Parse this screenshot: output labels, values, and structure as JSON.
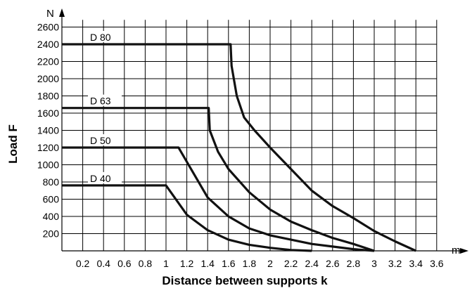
{
  "chart_data": {
    "type": "line",
    "xlabel": "Distance between supports k",
    "ylabel": "Load F",
    "x_unit": "m",
    "y_unit": "N",
    "xlim": [
      0,
      3.8
    ],
    "ylim": [
      0,
      2700
    ],
    "x_ticks": [
      0.2,
      0.4,
      0.6,
      0.8,
      1,
      1.2,
      1.4,
      1.6,
      1.8,
      2,
      2.2,
      2.4,
      2.6,
      2.8,
      3,
      3.2,
      3.4,
      3.6
    ],
    "x_tick_labels": [
      "0.2",
      "0.4",
      "0.6",
      "0.8",
      "1",
      "1.2",
      "1.4",
      "1.6",
      "1.8",
      "2",
      "2.2",
      "2.4",
      "2.6",
      "2.8",
      "3",
      "3.2",
      "3.4",
      "3.6"
    ],
    "y_ticks": [
      200,
      400,
      600,
      800,
      1000,
      1200,
      1400,
      1600,
      1800,
      2000,
      2200,
      2400,
      2600
    ],
    "y_tick_labels": [
      "200",
      "400",
      "600",
      "800",
      "1000",
      "1200",
      "1400",
      "1600",
      "1800",
      "2000",
      "2200",
      "2400",
      "2600"
    ],
    "grid": true,
    "series": [
      {
        "name": "D 80",
        "x": [
          0,
          1.62,
          1.63,
          1.68,
          1.75,
          1.85,
          2.0,
          2.2,
          2.4,
          2.6,
          2.8,
          3.0,
          3.2,
          3.4
        ],
        "y": [
          2400,
          2400,
          2150,
          1800,
          1550,
          1400,
          1200,
          950,
          700,
          520,
          380,
          230,
          110,
          0
        ]
      },
      {
        "name": "D 63",
        "x": [
          0,
          1.41,
          1.42,
          1.5,
          1.6,
          1.8,
          2.0,
          2.2,
          2.4,
          2.6,
          2.8,
          3.0
        ],
        "y": [
          1660,
          1660,
          1400,
          1150,
          950,
          680,
          480,
          340,
          240,
          150,
          80,
          0
        ]
      },
      {
        "name": "D 50",
        "x": [
          0,
          1.12,
          1.4,
          1.6,
          1.8,
          2.0,
          2.2,
          2.4,
          2.6,
          2.8,
          3.0
        ],
        "y": [
          1200,
          1200,
          620,
          400,
          260,
          180,
          130,
          80,
          50,
          20,
          0
        ]
      },
      {
        "name": "D 40",
        "x": [
          0,
          1.0,
          1.2,
          1.4,
          1.6,
          1.8,
          2.0,
          2.2,
          2.4
        ],
        "y": [
          760,
          760,
          420,
          240,
          130,
          70,
          35,
          10,
          0
        ]
      }
    ]
  }
}
